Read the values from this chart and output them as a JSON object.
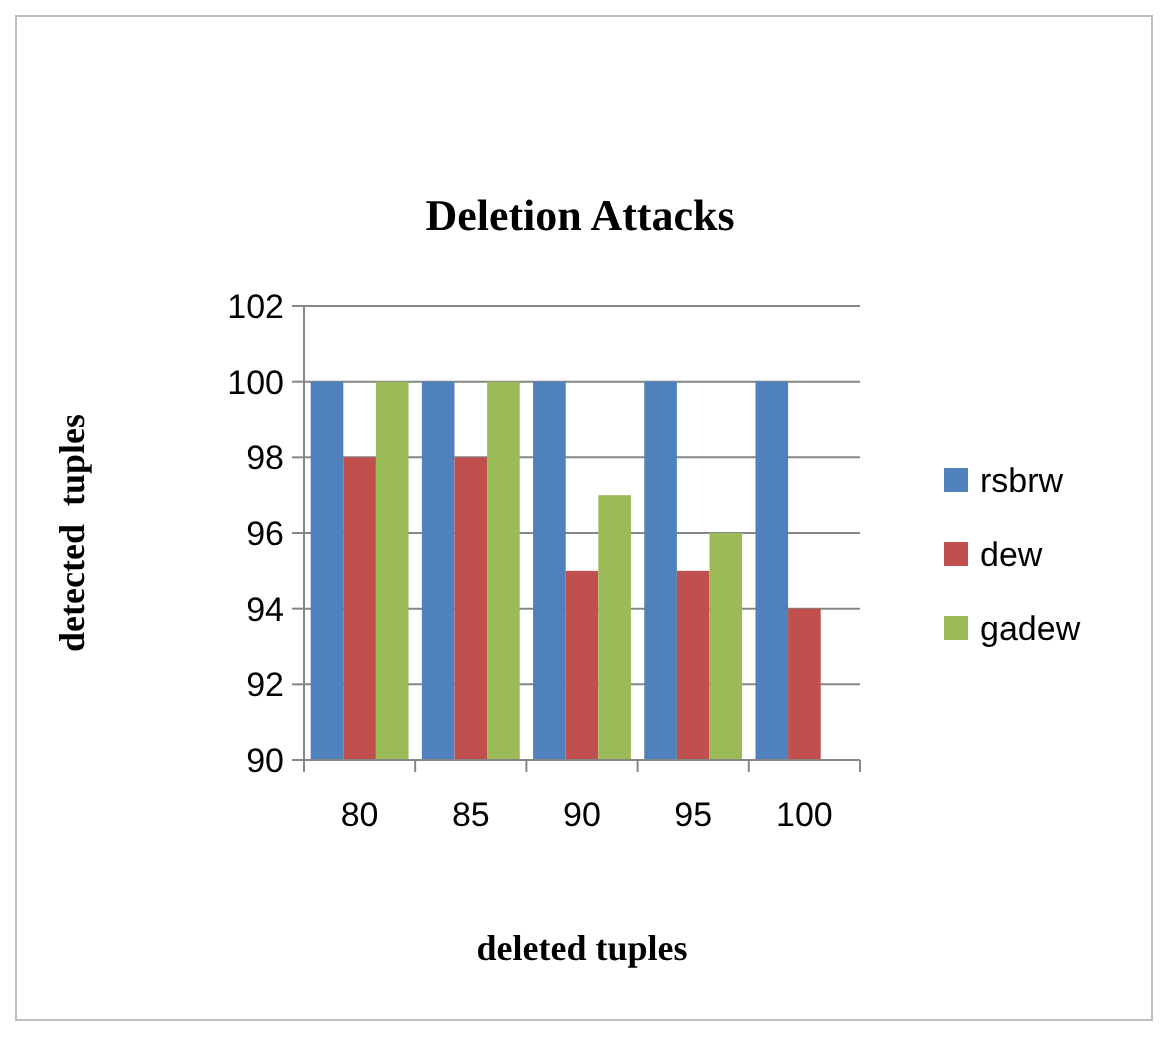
{
  "chart_data": {
    "type": "bar",
    "title": "Deletion Attacks",
    "xlabel": "deleted tuples",
    "ylabel": "detected  tuples",
    "categories": [
      "80",
      "85",
      "90",
      "95",
      "100"
    ],
    "series": [
      {
        "name": "rsbrw",
        "color": "#4f81bd",
        "values": [
          100,
          100,
          100,
          100,
          100
        ]
      },
      {
        "name": "dew",
        "color": "#c0504d",
        "values": [
          98,
          98,
          95,
          95,
          94
        ]
      },
      {
        "name": "gadew",
        "color": "#9bbb59",
        "values": [
          100,
          100,
          97,
          96,
          null
        ]
      }
    ],
    "ylim": [
      90,
      102
    ],
    "yticks": [
      90,
      92,
      94,
      96,
      98,
      100,
      102
    ],
    "grid": "y",
    "legend": "right"
  }
}
